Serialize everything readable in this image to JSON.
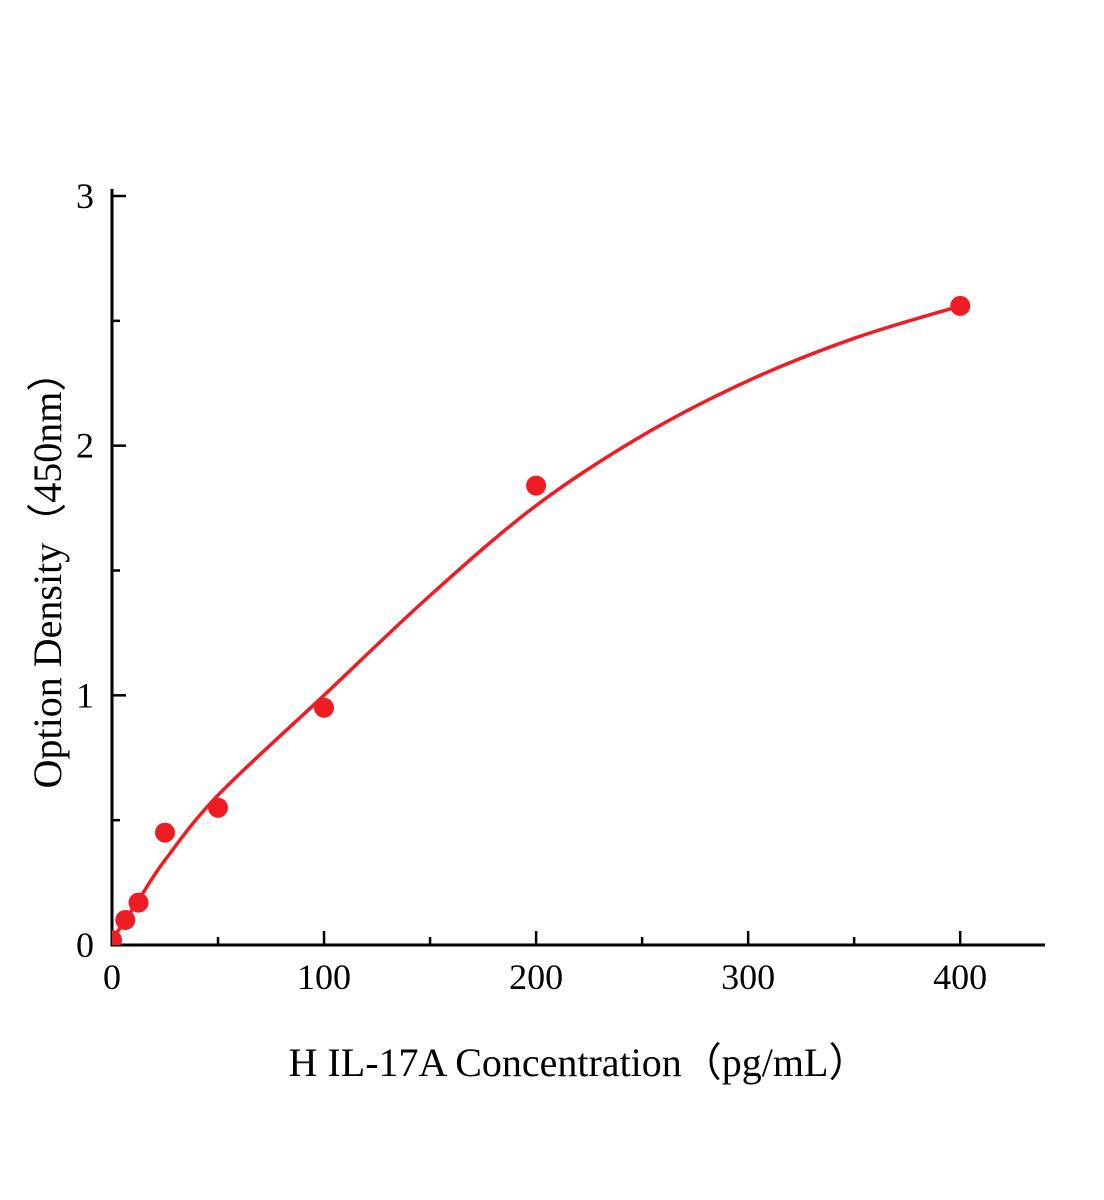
{
  "chart_data": {
    "type": "scatter",
    "title": "",
    "xlabel": "H IL-17A Concentration（pg/mL）",
    "ylabel": "Option Density（450nm）",
    "xlim": [
      0,
      440
    ],
    "ylim": [
      0,
      3
    ],
    "x_major_ticks": [
      0,
      100,
      200,
      300,
      400
    ],
    "x_minor_ticks": [
      50,
      150,
      250,
      350
    ],
    "y_major_ticks": [
      0,
      1,
      2,
      3
    ],
    "y_minor_ticks": [
      0.5,
      1.5,
      2.5
    ],
    "x_tick_labels": [
      "0",
      "100",
      "200",
      "300",
      "400"
    ],
    "y_tick_labels": [
      "0",
      "1",
      "2",
      "3"
    ],
    "points": [
      [
        0,
        0.02
      ],
      [
        6.25,
        0.1
      ],
      [
        12.5,
        0.17
      ],
      [
        25,
        0.45
      ],
      [
        50,
        0.55
      ],
      [
        100,
        0.95
      ],
      [
        200,
        1.84
      ],
      [
        400,
        2.56
      ]
    ],
    "fit_curve": [
      [
        0,
        0.02
      ],
      [
        12.5,
        0.18
      ],
      [
        25,
        0.34
      ],
      [
        50,
        0.6
      ],
      [
        100,
        1.0
      ],
      [
        150,
        1.4
      ],
      [
        200,
        1.76
      ],
      [
        250,
        2.04
      ],
      [
        300,
        2.26
      ],
      [
        350,
        2.43
      ],
      [
        400,
        2.56
      ]
    ],
    "line_color": "#ee1c23",
    "point_color": "#ee1c23",
    "axis_color": "#000000",
    "legend": null,
    "grid": false
  }
}
